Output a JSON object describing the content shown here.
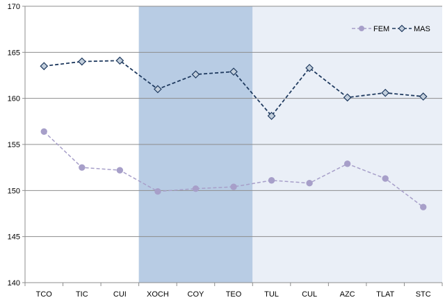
{
  "chart_data": {
    "type": "line",
    "categories": [
      "TCO",
      "TIC",
      "CUI",
      "XOCH",
      "COY",
      "TEO",
      "TUL",
      "CUL",
      "AZC",
      "TLAT",
      "STC"
    ],
    "ylim": [
      140,
      170
    ],
    "yticks": [
      140,
      145,
      150,
      155,
      160,
      165,
      170
    ],
    "grid": true,
    "legend_position": "top-right",
    "shaded_bands": [
      {
        "from": "XOCH",
        "to": "TEO",
        "color": "#b8cce4"
      },
      {
        "from": "TUL",
        "to": "STC",
        "color": "#eaeff7"
      }
    ],
    "series": [
      {
        "name": "FEM",
        "color": "#a79fc9",
        "marker": "circle",
        "line": "dashed",
        "values": [
          156.4,
          152.5,
          152.2,
          149.9,
          150.2,
          150.4,
          151.1,
          150.8,
          152.9,
          151.3,
          148.2
        ]
      },
      {
        "name": "MAS",
        "color": "#1f3a5f",
        "marker": "diamond",
        "line": "dashed",
        "values": [
          163.5,
          164.0,
          164.1,
          161.0,
          162.6,
          162.9,
          158.1,
          163.3,
          160.1,
          160.6,
          160.2
        ]
      }
    ]
  }
}
